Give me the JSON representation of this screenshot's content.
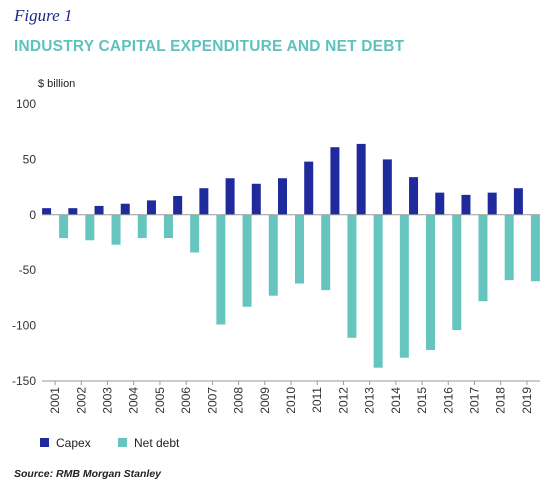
{
  "figure_label": "Figure 1",
  "title": "INDUSTRY CAPITAL EXPENDITURE AND NET DEBT",
  "source": "Source: RMB Morgan Stanley",
  "colors": {
    "capex": "#1f2a9c",
    "net_debt": "#66c6bf",
    "title": "#5fc2bd",
    "figure_label": "#1b2a8a",
    "axis": "#9a9a9a"
  },
  "chart_data": {
    "type": "bar",
    "title": "INDUSTRY CAPITAL EXPENDITURE AND NET DEBT",
    "ylabel": "$ billion",
    "xlabel": "",
    "ylim": [
      -150,
      100
    ],
    "yticks": [
      100,
      50,
      0,
      -50,
      -100,
      -150
    ],
    "grid": false,
    "legend_position": "bottom-left",
    "categories": [
      "2001",
      "2002",
      "2003",
      "2004",
      "2005",
      "2006",
      "2007",
      "2008",
      "2009",
      "2010",
      "2011",
      "2012",
      "2013",
      "2014",
      "2015",
      "2016",
      "2017",
      "2018",
      "2019"
    ],
    "series": [
      {
        "name": "Capex",
        "values": [
          6,
          6,
          8,
          10,
          13,
          17,
          24,
          33,
          28,
          33,
          48,
          61,
          64,
          50,
          34,
          20,
          18,
          20,
          24
        ]
      },
      {
        "name": "Net debt",
        "values": [
          -21,
          -23,
          -27,
          -21,
          -21,
          -34,
          -99,
          -83,
          -73,
          -62,
          -68,
          -111,
          -138,
          -129,
          -122,
          -104,
          -78,
          -59,
          -60
        ]
      }
    ]
  }
}
